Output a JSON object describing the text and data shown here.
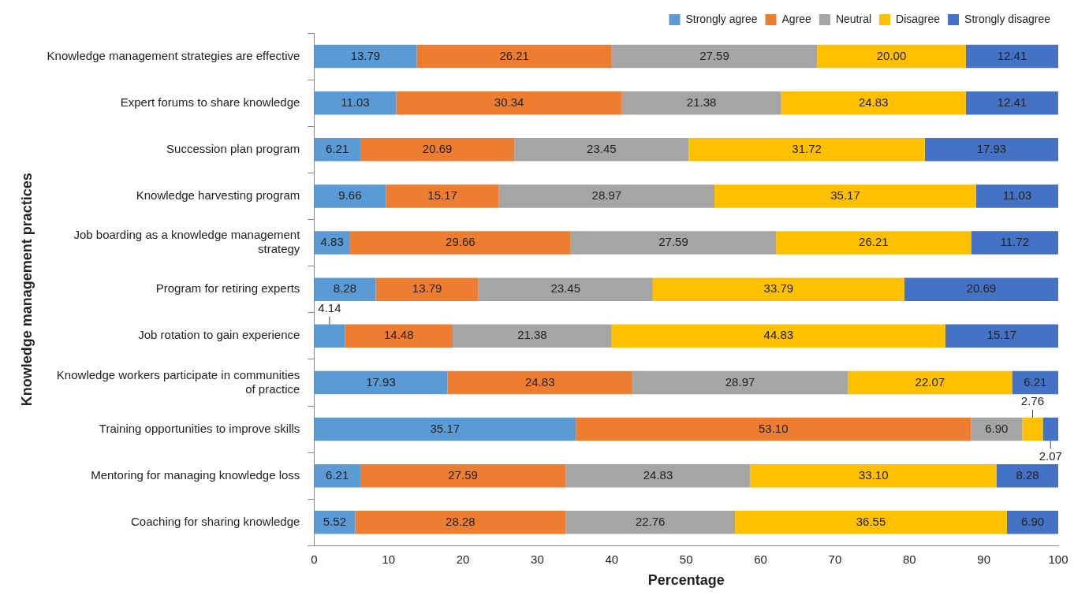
{
  "chart_data": {
    "type": "bar",
    "orientation": "horizontal",
    "stacked": true,
    "legend": "top right",
    "grid": false,
    "xlabel": "Percentage",
    "ylabel": "Knowledge management practices",
    "categories": [
      "Knowledge management strategies are effective",
      "Expert forums to share knowledge",
      "Succession plan program",
      "Knowledge harvesting program",
      "Job boarding as a knowledge management strategy",
      "Program for retiring experts",
      "Job rotation to gain experience",
      "Knowledge workers participate in communities of practice",
      "Training opportunities to improve skills",
      "Mentoring for managing knowledge loss",
      "Coaching for sharing knowledge"
    ],
    "xlim": [
      0,
      100
    ],
    "xticks": [
      0,
      10,
      20,
      30,
      40,
      50,
      60,
      70,
      80,
      90,
      100
    ],
    "series": [
      {
        "name": "Strongly agree",
        "color": "#5b9bd5",
        "values": [
          13.79,
          11.03,
          6.21,
          9.66,
          4.83,
          8.28,
          4.14,
          17.93,
          35.17,
          6.21,
          5.52
        ],
        "value_labels": [
          "13.79",
          "11.03",
          "6.21",
          "9.66",
          "4.83",
          "8.28",
          "4.14",
          "17.93",
          "35.17",
          "6.21",
          "5.52"
        ]
      },
      {
        "name": "Agree",
        "color": "#ed7d31",
        "values": [
          26.21,
          30.34,
          20.69,
          15.17,
          29.66,
          13.79,
          14.48,
          24.83,
          53.1,
          27.59,
          28.28
        ],
        "value_labels": [
          "26.21",
          "30.34",
          "20.69",
          "15.17",
          "29.66",
          "13.79",
          "14.48",
          "24.83",
          "53.10",
          "27.59",
          "28.28"
        ]
      },
      {
        "name": "Neutral",
        "color": "#a5a5a5",
        "values": [
          27.59,
          21.38,
          23.45,
          28.97,
          27.59,
          23.45,
          21.38,
          28.97,
          6.9,
          24.83,
          22.76
        ],
        "value_labels": [
          "27.59",
          "21.38",
          "23.45",
          "28.97",
          "27.59",
          "23.45",
          "21.38",
          "28.97",
          "6.90",
          "24.83",
          "22.76"
        ]
      },
      {
        "name": "Disagree",
        "color": "#ffc000",
        "values": [
          20.0,
          24.83,
          31.72,
          35.17,
          26.21,
          33.79,
          44.83,
          22.07,
          2.76,
          33.1,
          36.55
        ],
        "value_labels": [
          "20.00",
          "24.83",
          "31.72",
          "35.17",
          "26.21",
          "33.79",
          "44.83",
          "22.07",
          "2.76",
          "33.10",
          "36.55"
        ]
      },
      {
        "name": "Strongly disagree",
        "color": "#4472c4",
        "values": [
          12.41,
          12.41,
          17.93,
          11.03,
          11.72,
          20.69,
          15.17,
          6.21,
          2.07,
          8.28,
          6.9
        ],
        "value_labels": [
          "12.41",
          "12.41",
          "17.93",
          "11.03",
          "11.72",
          "20.69",
          "15.17",
          "6.21",
          "2.07",
          "8.28",
          "6.90"
        ]
      }
    ]
  }
}
